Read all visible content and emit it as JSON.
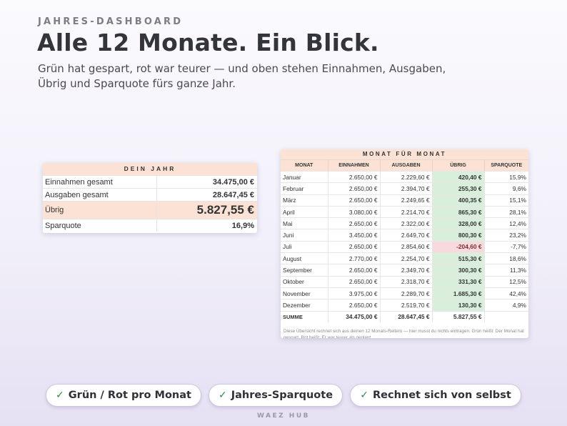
{
  "header": {
    "kicker": "JAHRES-DASHBOARD",
    "headline": "Alle 12 Monate. Ein Blick.",
    "subtitle": "Grün hat gespart, rot war teurer — und oben stehen Einnahmen, Ausgaben, Übrig und Sparquote fürs ganze Jahr."
  },
  "summary": {
    "title": "DEIN JAHR",
    "rows": [
      {
        "label": "Einnahmen gesamt",
        "value": "34.475,00 €"
      },
      {
        "label": "Ausgaben gesamt",
        "value": "28.647,45 €"
      },
      {
        "label": "Übrig",
        "value": "5.827,55 €"
      },
      {
        "label": "Sparquote",
        "value": "16,9%"
      }
    ]
  },
  "months": {
    "title": "MONAT FÜR MONAT",
    "columns": [
      "MONAT",
      "EINNAHMEN",
      "AUSGABEN",
      "ÜBRIG",
      "SPARQUOTE"
    ],
    "rows": [
      {
        "monat": "Januar",
        "einnahmen": "2.650,00 €",
        "ausgaben": "2.229,60 €",
        "uebrig": "420,40 €",
        "sparquote": "15,9%",
        "status": "pos"
      },
      {
        "monat": "Februar",
        "einnahmen": "2.650,00 €",
        "ausgaben": "2.394,70 €",
        "uebrig": "255,30 €",
        "sparquote": "9,6%",
        "status": "pos"
      },
      {
        "monat": "März",
        "einnahmen": "2.650,00 €",
        "ausgaben": "2.249,65 €",
        "uebrig": "400,35 €",
        "sparquote": "15,1%",
        "status": "pos"
      },
      {
        "monat": "April",
        "einnahmen": "3.080,00 €",
        "ausgaben": "2.214,70 €",
        "uebrig": "865,30 €",
        "sparquote": "28,1%",
        "status": "pos"
      },
      {
        "monat": "Mai",
        "einnahmen": "2.650,00 €",
        "ausgaben": "2.322,00 €",
        "uebrig": "328,00 €",
        "sparquote": "12,4%",
        "status": "pos"
      },
      {
        "monat": "Juni",
        "einnahmen": "3.450,00 €",
        "ausgaben": "2.649,70 €",
        "uebrig": "800,30 €",
        "sparquote": "23,2%",
        "status": "pos"
      },
      {
        "monat": "Juli",
        "einnahmen": "2.650,00 €",
        "ausgaben": "2.854,60 €",
        "uebrig": "-204,60 €",
        "sparquote": "-7,7%",
        "status": "neg"
      },
      {
        "monat": "August",
        "einnahmen": "2.770,00 €",
        "ausgaben": "2.254,70 €",
        "uebrig": "515,30 €",
        "sparquote": "18,6%",
        "status": "pos"
      },
      {
        "monat": "September",
        "einnahmen": "2.650,00 €",
        "ausgaben": "2.349,70 €",
        "uebrig": "300,30 €",
        "sparquote": "11,3%",
        "status": "pos"
      },
      {
        "monat": "Oktober",
        "einnahmen": "2.650,00 €",
        "ausgaben": "2.318,70 €",
        "uebrig": "331,30 €",
        "sparquote": "12,5%",
        "status": "pos"
      },
      {
        "monat": "November",
        "einnahmen": "3.975,00 €",
        "ausgaben": "2.289,70 €",
        "uebrig": "1.685,30 €",
        "sparquote": "42,4%",
        "status": "pos"
      },
      {
        "monat": "Dezember",
        "einnahmen": "2.650,00 €",
        "ausgaben": "2.519,70 €",
        "uebrig": "130,30 €",
        "sparquote": "4,9%",
        "status": "pos"
      }
    ],
    "sum": {
      "label": "SUMME",
      "einnahmen": "34.475,00 €",
      "ausgaben": "28.647,45 €",
      "uebrig": "5.827,55 €",
      "sparquote": ""
    },
    "note": "Diese Übersicht rechnet sich aus deinen 12 Monats-Reitern — hier musst du nichts eintragen. Grün heißt: Der Monat hat gespart. Rot heißt: Er war teurer als geplant."
  },
  "features": [
    {
      "icon": "check-icon",
      "label": "Grün / Rot pro Monat"
    },
    {
      "icon": "check-icon",
      "label": "Jahres-Sparquote"
    },
    {
      "icon": "check-icon",
      "label": "Rechnet sich von selbst"
    }
  ],
  "colors": {
    "positive": "#d9efdc",
    "negative": "#f8d9dc",
    "header": "#fbe2d4",
    "check": "#2e8b4b"
  },
  "footer": "WAEZ HUB"
}
